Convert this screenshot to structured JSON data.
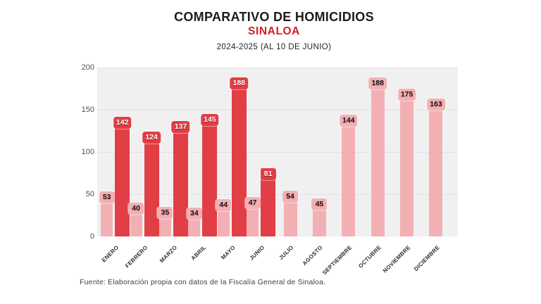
{
  "header": {
    "title": "COMPARATIVO DE HOMICIDIOS",
    "region": "SINALOA",
    "period": "2024-2025 (AL 10 DE JUNIO)"
  },
  "footer": {
    "source": "Fuente: Elaboración propia con datos de la Fiscalía General de Sinaloa."
  },
  "colors": {
    "bar_2024": "#f3b0b4",
    "bar_2025": "#e13e46",
    "title_accent": "#d41d24",
    "plot_background": "#f1f0f1",
    "gridline": "#e2e1e3",
    "label_2024_text": "#171717",
    "label_2025_text": "#ffffff"
  },
  "chart_data": {
    "type": "bar",
    "title": "COMPARATIVO DE HOMICIDIOS SINALOA 2024-2025 (AL 10 DE JUNIO)",
    "categories": [
      "ENERO",
      "FEBRERO",
      "MARZO",
      "ABRIL",
      "MAYO",
      "JUNIO",
      "JULIO",
      "AGOSTO",
      "SEPTIEMBRE",
      "OCTUBRE",
      "NOVIEMBRE",
      "DICIEMBRE"
    ],
    "series": [
      {
        "name": "2024",
        "color": "#f3b0b4",
        "values": [
          53,
          40,
          35,
          34,
          44,
          47,
          54,
          45,
          144,
          188,
          175,
          163
        ]
      },
      {
        "name": "2025",
        "color": "#e13e46",
        "values": [
          142,
          124,
          137,
          145,
          188,
          81,
          null,
          null,
          null,
          null,
          null,
          null
        ]
      }
    ],
    "xlabel": "",
    "ylabel": "",
    "ylim": [
      0,
      200
    ],
    "yticks": [
      0,
      50,
      100,
      150,
      200
    ],
    "grid": true,
    "legend": "none",
    "value_labels": "top-of-bar"
  }
}
